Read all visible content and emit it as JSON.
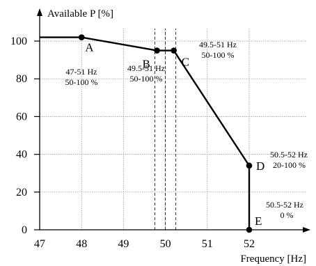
{
  "chart_data": {
    "type": "line",
    "title": "",
    "xlabel": "Frequency [Hz]",
    "ylabel": "Available P [%]",
    "xlim": [
      47,
      52
    ],
    "ylim": [
      0,
      100
    ],
    "x_ticks": [
      47,
      48,
      49,
      50,
      51,
      52
    ],
    "y_ticks": [
      0,
      20,
      40,
      60,
      80,
      100
    ],
    "grid": true,
    "dashed_reference_lines_x": [
      49.75,
      50,
      50.25
    ],
    "series": [
      {
        "x": [
          47,
          48,
          49.8,
          50.2,
          52,
          52
        ],
        "y": [
          102,
          102,
          95,
          95,
          34,
          0
        ]
      }
    ],
    "points": [
      {
        "label": "A",
        "x": 48,
        "y": 102
      },
      {
        "label": "B",
        "x": 49.8,
        "y": 95
      },
      {
        "label": "C",
        "x": 50.2,
        "y": 95
      },
      {
        "label": "D",
        "x": 52,
        "y": 34
      },
      {
        "label": "E",
        "x": 52,
        "y": 0
      }
    ],
    "annotations": [
      {
        "id": "a",
        "lines": [
          "47-51 Hz",
          "50-100 %"
        ]
      },
      {
        "id": "b",
        "lines": [
          "49.5-51 Hz",
          "50-100 %"
        ]
      },
      {
        "id": "c",
        "lines": [
          "49.5-51 Hz",
          "50-100 %"
        ]
      },
      {
        "id": "d",
        "lines": [
          "50.5-52 Hz",
          "20-100 %"
        ]
      },
      {
        "id": "e",
        "lines": [
          "50.5-52 Hz",
          "0 %"
        ]
      }
    ]
  }
}
